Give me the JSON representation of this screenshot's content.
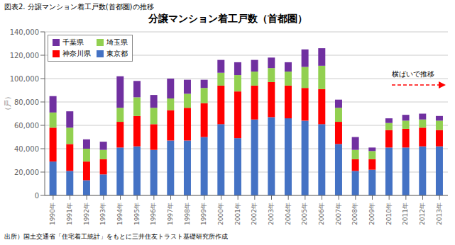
{
  "chart_data": {
    "type": "bar",
    "title": "分譲マンション着工戸数（首都圏）",
    "caption_top": "図表2. 分譲マンション着工戸数(首都圏)の推移",
    "caption_bottom": "出所）国土交通省「住宅着工統計」をもとに三井住友トラスト基礎研究所作成",
    "y_label": "（戸）",
    "annotations": [
      {
        "text": "横ばいで推移"
      }
    ],
    "categories": [
      "1990年",
      "1991年",
      "1992年",
      "1993年",
      "1994年",
      "1995年",
      "1996年",
      "1997年",
      "1998年",
      "1999年",
      "2000年",
      "2001年",
      "2002年",
      "2003年",
      "2004年",
      "2005年",
      "2006年",
      "2007年",
      "2008年",
      "2009年",
      "2010年",
      "2011年",
      "2012年",
      "2013年"
    ],
    "series": [
      {
        "name": "東京都",
        "color": "#4472C4",
        "values": [
          29000,
          21000,
          13000,
          18000,
          41000,
          42000,
          39000,
          47000,
          47000,
          50000,
          61000,
          49000,
          65000,
          67000,
          66000,
          64000,
          61000,
          44000,
          21000,
          22000,
          41000,
          41000,
          42000,
          42000
        ]
      },
      {
        "name": "神奈川県",
        "color": "#FF0000",
        "values": [
          29000,
          23000,
          16000,
          13000,
          22000,
          26000,
          22000,
          26000,
          28000,
          29000,
          33000,
          40000,
          29000,
          30000,
          28000,
          28000,
          30000,
          19000,
          10000,
          9000,
          15000,
          16000,
          16000,
          14000
        ]
      },
      {
        "name": "埼玉県",
        "color": "#92D050",
        "values": [
          13000,
          14000,
          11000,
          8000,
          12000,
          16000,
          14000,
          10000,
          12000,
          13000,
          11000,
          14000,
          12000,
          12000,
          12000,
          18000,
          20000,
          12000,
          8000,
          7000,
          6000,
          7000,
          7000,
          8000
        ]
      },
      {
        "name": "千葉県",
        "color": "#7030A0",
        "values": [
          14000,
          14000,
          8000,
          7000,
          27000,
          14000,
          11000,
          17000,
          12000,
          7000,
          11000,
          11000,
          10000,
          9000,
          8000,
          15000,
          15000,
          7000,
          11000,
          3000,
          4000,
          5000,
          5000,
          4000
        ]
      }
    ],
    "ylim": [
      0,
      140000
    ],
    "yticks": [
      0,
      {
        "value": 20000,
        "label": "20,000"
      },
      {
        "value": 40000,
        "label": "40,000"
      },
      {
        "value": 60000,
        "label": "60,000"
      },
      {
        "value": 80000,
        "label": "80,000"
      },
      {
        "value": 100000,
        "label": "100,000"
      },
      {
        "value": 120000,
        "label": "120,000"
      },
      {
        "value": 140000,
        "label": "140,000"
      }
    ],
    "grid": true,
    "stacked": true,
    "legend": "upper left"
  }
}
